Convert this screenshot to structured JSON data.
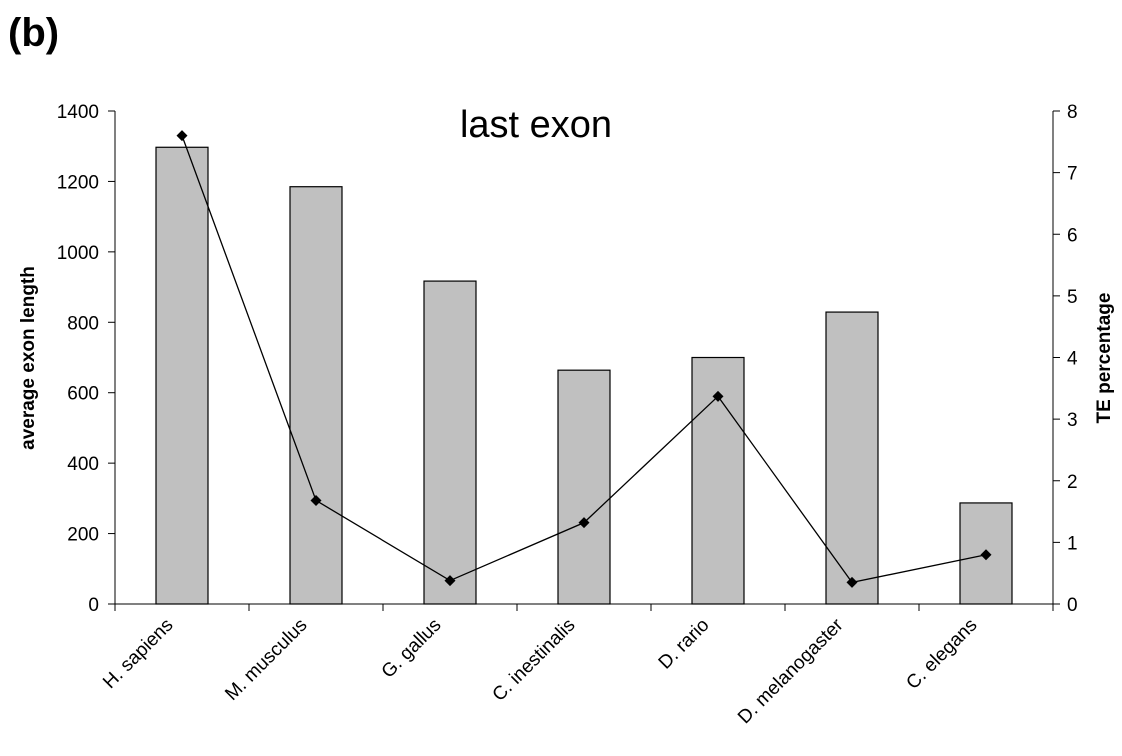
{
  "panel_label": "(b)",
  "chart_data": {
    "type": "bar",
    "title": "last exon",
    "categories": [
      "H. sapiens",
      "M. musculus",
      "G. gallus",
      "C. inestinalis",
      "D. rario",
      "D. melanogaster",
      "C. elegans"
    ],
    "series": [
      {
        "type": "bar",
        "axis": "left",
        "values": [
          1297,
          1185,
          917,
          664,
          700,
          829,
          287
        ]
      },
      {
        "type": "line",
        "axis": "right",
        "values": [
          7.6,
          1.68,
          0.38,
          1.32,
          3.37,
          0.35,
          0.8
        ]
      }
    ],
    "ylabel": "average exon length",
    "ylabel_right": "TE percentage",
    "ylim": [
      0,
      1400
    ],
    "ylim_right": [
      0,
      8
    ],
    "yticks": [
      0,
      200,
      400,
      600,
      800,
      1000,
      1200,
      1400
    ],
    "yticks_right": [
      0,
      1,
      2,
      3,
      4,
      5,
      6,
      7,
      8
    ],
    "colors": {
      "bar_fill": "#c0c0c0",
      "bar_stroke": "#000000",
      "line": "#000000",
      "marker": "#000000"
    },
    "grid": false,
    "legend": "none"
  }
}
